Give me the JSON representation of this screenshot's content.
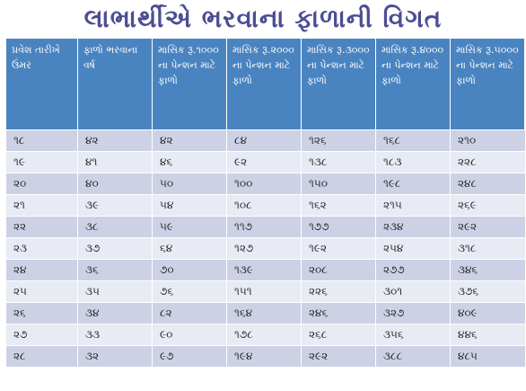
{
  "title": "લાભાર્થીએ ભરવાના ફાળાની વિગત",
  "table": {
    "headers": [
      "પ્રવેશ તારીખે ઉંમર",
      "ફાળો ભરવાના વર્ષ",
      "માસિક રૂ.૧૦૦૦ ના પેન્શન માટે ફાળો",
      "માસિક રૂ.૨૦૦૦ ના પેન્શન માટે ફાળો",
      "માસિક રૂ.૩૦૦૦ ના પેન્શન માટે ફાળો",
      "માસિક રૂ.૪૦૦૦ ના પેન્શન માટે ફાળો",
      "માસિક રૂ.૫૦૦૦ ના પેન્શન માટે ફાળો"
    ],
    "rows": [
      [
        "૧૮",
        "૪૨",
        "૪૨",
        "૮૪",
        "૧૨૬",
        "૧૬૮",
        "૨૧૦"
      ],
      [
        "૧૯",
        "૪૧",
        "૪૬",
        "૯૨",
        "૧૩૮",
        "૧૮૩",
        "૨૨૮"
      ],
      [
        "૨૦",
        "૪૦",
        "૫૦",
        "૧૦૦",
        "૧૫૦",
        "૧૯૮",
        "૨૪૮"
      ],
      [
        "૨૧",
        "૩૯",
        "૫૪",
        "૧૦૮",
        "૧૬૨",
        "૨૧૫",
        "૨૬૯"
      ],
      [
        "૨૨",
        "૩૮",
        "૫૯",
        "૧૧૭",
        "૧૭૭",
        "૨૩૪",
        "૨૯૨"
      ],
      [
        "૨૩",
        "૩૭",
        "૬૪",
        "૧૨૭",
        "૧૯૨",
        "૨૫૪",
        "૩૧૮"
      ],
      [
        "૨૪",
        "૩૬",
        "૭૦",
        "૧૩૯",
        "૨૦૮",
        "૨૭૭",
        "૩૪૬"
      ],
      [
        "૨૫",
        "૩૫",
        "૭૬",
        "૧૫૧",
        "૨૨૬",
        "૩૦૧",
        "૩૭૬"
      ],
      [
        "૨૬",
        "૩૪",
        "૮૨",
        "૧૬૪",
        "૨૪૬",
        "૩૨૭",
        "૪૦૯"
      ],
      [
        "૨૭",
        "૩૩",
        "૯૦",
        "૧૭૮",
        "૨૬૮",
        "૩૫૬",
        "૪૪૬"
      ],
      [
        "૨૮",
        "૩૨",
        "૯૭",
        "૧૯૪",
        "૨૯૨",
        "૩૮૮",
        "૪૮૫"
      ]
    ]
  }
}
